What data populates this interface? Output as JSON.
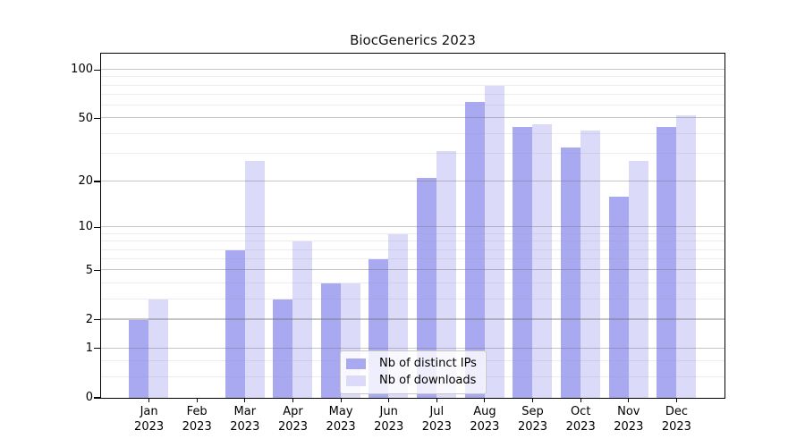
{
  "title": "BiocGenerics 2023",
  "chart_data": {
    "type": "bar",
    "title": "BiocGenerics 2023",
    "categories": [
      "Jan 2023",
      "Feb 2023",
      "Mar 2023",
      "Apr 2023",
      "May 2023",
      "Jun 2023",
      "Jul 2023",
      "Aug 2023",
      "Sep 2023",
      "Oct 2023",
      "Nov 2023",
      "Dec 2023"
    ],
    "x_tick_month": [
      "Jan",
      "Feb",
      "Mar",
      "Apr",
      "May",
      "Jun",
      "Jul",
      "Aug",
      "Sep",
      "Oct",
      "Nov",
      "Dec"
    ],
    "x_tick_year": "2023",
    "series": [
      {
        "name": "Nb of distinct IPs",
        "color": "#a9a9f2",
        "values": [
          2,
          0,
          7,
          3,
          4,
          6,
          21,
          63,
          44,
          33,
          16,
          44
        ]
      },
      {
        "name": "Nb of downloads",
        "color": "#dbdbf9",
        "values": [
          3,
          0,
          27,
          8,
          4,
          9,
          31,
          80,
          46,
          42,
          27,
          52
        ]
      }
    ],
    "yscale": "log1p",
    "ylim": [
      0,
      126
    ],
    "y_major_ticks": [
      100,
      50,
      20,
      10,
      5,
      2,
      1,
      0
    ],
    "y_tick_labels": [
      "100",
      "50",
      "20",
      "10",
      "5",
      "2",
      "1",
      "0"
    ],
    "y_minor_gridlines": [
      0.33,
      0.67,
      3,
      4,
      6,
      7,
      8,
      9,
      30,
      40,
      60,
      70,
      80,
      90
    ],
    "grid": "horizontal-above-bars",
    "legend_position": "lower-center-inside",
    "colors": {
      "axis": "#000000",
      "background": "#ffffff",
      "major_grid": "rgba(110,110,110,0.40)",
      "minor_grid": "rgba(150,150,150,0.18)"
    }
  }
}
